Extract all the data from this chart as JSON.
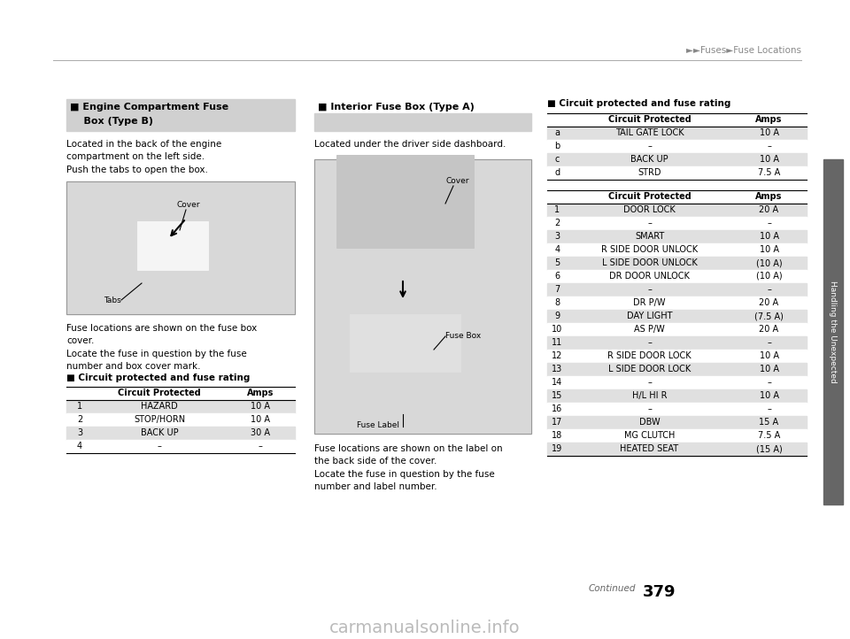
{
  "page_bg": "#ffffff",
  "header_text": "►►Fuses►Fuse Locations",
  "header_color": "#888888",
  "page_number": "379",
  "continued_text": "Continued",
  "watermark": "carmanualsonline.info",
  "section_header_bg": "#d0d0d0",
  "row_highlight_bg": "#e0e0e0",
  "row_normal_bg": "#ffffff",
  "sidebar_color": "#666666",
  "sidebar_text": "Handling the Unexpected",
  "left_section_title_line1": "■ Engine Compartment Fuse",
  "left_section_title_line2": "    Box (Type B)",
  "left_body_text": "Located in the back of the engine\ncompartment on the left side.\nPush the tabs to open the box.",
  "left_body_text2": "Fuse locations are shown on the fuse box\ncover.\nLocate the fuse in question by the fuse\nnumber and box cover mark.",
  "left_sub_heading": "■ Circuit protected and fuse rating",
  "left_table_rows": [
    [
      "1",
      "HAZARD",
      "10 A"
    ],
    [
      "2",
      "STOP/HORN",
      "10 A"
    ],
    [
      "3",
      "BACK UP",
      "30 A"
    ],
    [
      "4",
      "–",
      "–"
    ]
  ],
  "left_table_highlights": [
    true,
    false,
    true,
    false
  ],
  "mid_section_title": "■ Interior Fuse Box (Type A)",
  "mid_body_text": "Located under the driver side dashboard.",
  "mid_body_text2": "Fuse locations are shown on the label on\nthe back side of the cover.\nLocate the fuse in question by the fuse\nnumber and label number.",
  "mid_cover_label": "Cover",
  "mid_fusebox_label": "Fuse Box",
  "mid_fuselabel_label": "Fuse Label",
  "right_sub_heading": "■ Circuit protected and fuse rating",
  "right_table1_rows": [
    [
      "a",
      "TAIL GATE LOCK",
      "10 A"
    ],
    [
      "b",
      "–",
      "–"
    ],
    [
      "c",
      "BACK UP",
      "10 A"
    ],
    [
      "d",
      "STRD",
      "7.5 A"
    ]
  ],
  "right_table1_highlights": [
    true,
    false,
    true,
    false
  ],
  "right_table2_rows": [
    [
      "1",
      "DOOR LOCK",
      "20 A"
    ],
    [
      "2",
      "–",
      "–"
    ],
    [
      "3",
      "SMART",
      "10 A"
    ],
    [
      "4",
      "R SIDE DOOR UNLOCK",
      "10 A"
    ],
    [
      "5",
      "L SIDE DOOR UNLOCK",
      "(10 A)"
    ],
    [
      "6",
      "DR DOOR UNLOCK",
      "(10 A)"
    ],
    [
      "7",
      "–",
      "–"
    ],
    [
      "8",
      "DR P/W",
      "20 A"
    ],
    [
      "9",
      "DAY LIGHT",
      "(7.5 A)"
    ],
    [
      "10",
      "AS P/W",
      "20 A"
    ],
    [
      "11",
      "–",
      "–"
    ],
    [
      "12",
      "R SIDE DOOR LOCK",
      "10 A"
    ],
    [
      "13",
      "L SIDE DOOR LOCK",
      "10 A"
    ],
    [
      "14",
      "–",
      "–"
    ],
    [
      "15",
      "H/L HI R",
      "10 A"
    ],
    [
      "16",
      "–",
      "–"
    ],
    [
      "17",
      "DBW",
      "15 A"
    ],
    [
      "18",
      "MG CLUTCH",
      "7.5 A"
    ],
    [
      "19",
      "HEATED SEAT",
      "(15 A)"
    ]
  ],
  "right_table2_highlights": [
    true,
    false,
    true,
    false,
    true,
    false,
    true,
    false,
    true,
    false,
    true,
    false,
    true,
    false,
    true,
    false,
    true,
    false,
    true
  ]
}
